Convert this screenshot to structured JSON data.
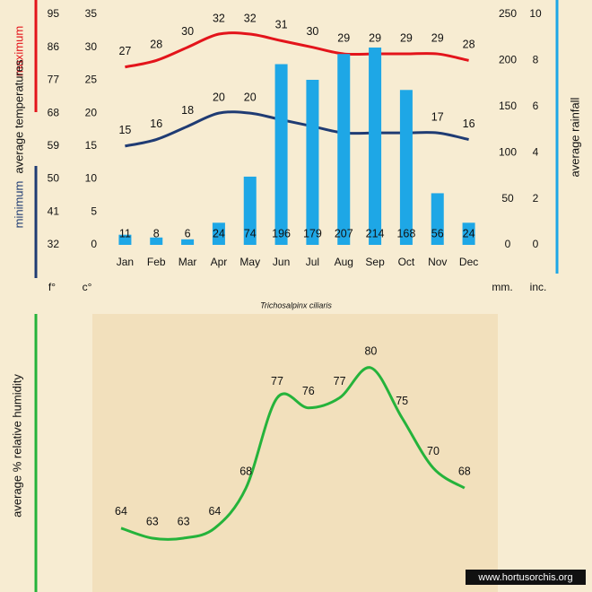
{
  "chart_data": [
    {
      "type": "combo",
      "caption": "Trichosalpinx ciliaris",
      "categories": [
        "Jan",
        "Feb",
        "Mar",
        "Apr",
        "May",
        "Jun",
        "Jul",
        "Aug",
        "Sep",
        "Oct",
        "Nov",
        "Dec"
      ],
      "series": [
        {
          "name": "maximum",
          "color": "#e3141b",
          "kind": "line",
          "values": [
            27,
            28,
            30,
            32,
            32,
            31,
            30,
            29,
            29,
            29,
            29,
            28
          ]
        },
        {
          "name": "minimum",
          "color": "#1f3b73",
          "kind": "line",
          "values": [
            15,
            16,
            18,
            20,
            20,
            19,
            18,
            17,
            17,
            17,
            17,
            16
          ]
        },
        {
          "name": "average rainfall",
          "color": "#1ea7e6",
          "kind": "bar",
          "axis": "y2",
          "values": [
            11,
            8,
            6,
            24,
            74,
            196,
            179,
            207,
            214,
            168,
            56,
            24
          ]
        }
      ],
      "ylabel": "average temperatures",
      "ylim": [
        0,
        35
      ],
      "yticks": [
        0,
        5,
        10,
        15,
        20,
        25,
        30,
        35
      ],
      "yunit": "c°",
      "yflim": [
        32,
        95
      ],
      "yfticks": [
        32,
        41,
        50,
        59,
        68,
        77,
        86,
        95
      ],
      "yfunit": "f°",
      "y2lim": [
        0,
        250
      ],
      "y2ticks": [
        0,
        50,
        100,
        150,
        200,
        250
      ],
      "y2unit": "mm.",
      "y2inlim": [
        0,
        10
      ],
      "y2inticks": [
        0,
        2,
        4,
        6,
        8,
        10
      ],
      "y2inunit": "inc."
    },
    {
      "type": "line",
      "ylabel": "average %  relative humidity",
      "color": "#25b33b",
      "values": [
        64,
        63,
        63,
        64,
        68,
        77,
        76,
        77,
        80,
        75,
        70,
        68
      ]
    }
  ],
  "watermark": "www.hortusorchis.org"
}
